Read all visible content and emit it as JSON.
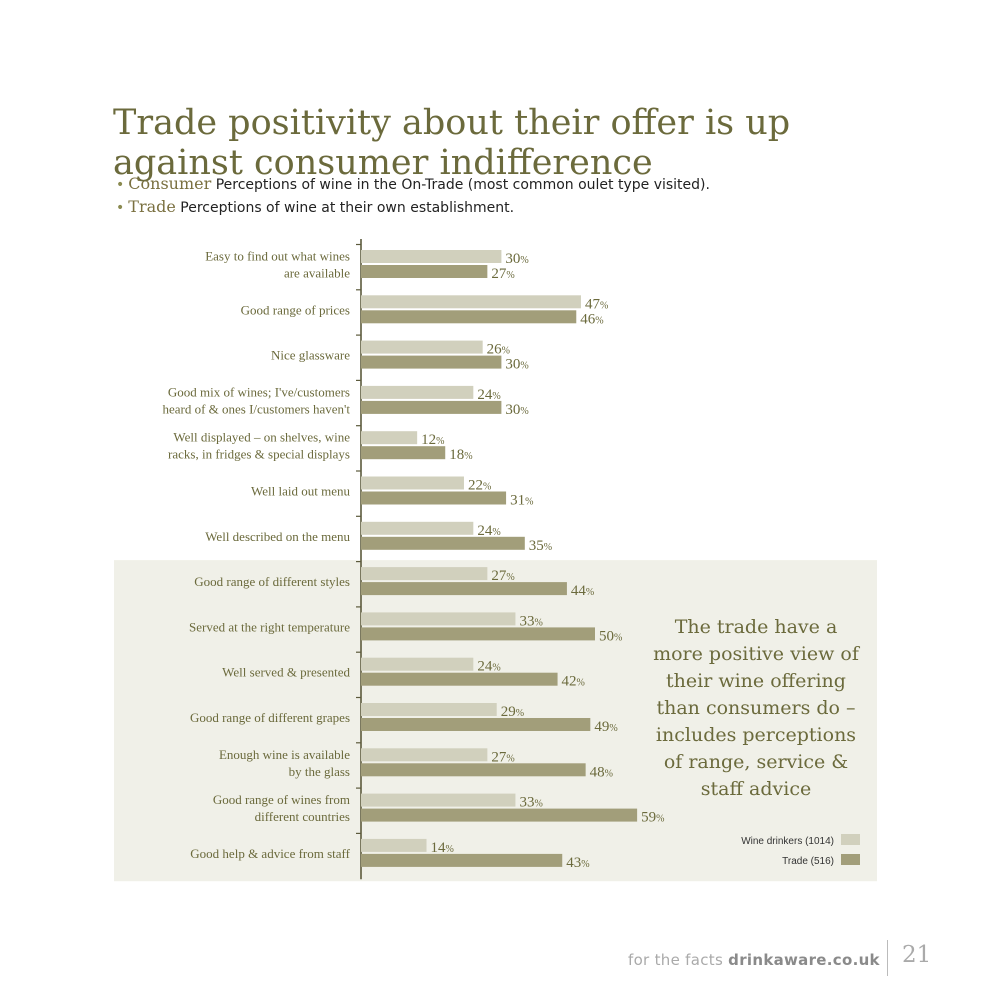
{
  "title": "Trade positivity about their offer is up against consumer indifference",
  "legend_notes": [
    {
      "key": "Consumer",
      "text": "Perceptions of wine in the On-Trade (most common oulet type visited)."
    },
    {
      "key": "Trade",
      "text": "Perceptions of wine at their own establishment."
    }
  ],
  "note": "The trade have a more positive view of their wine offering than consumers do – includes perceptions of range, service & staff advice",
  "footer": {
    "prefix": "for the facts ",
    "site": "drinkaware.co.uk",
    "page": "21"
  },
  "colors": {
    "consumer": "#d1d0bd",
    "trade": "#a29e7a",
    "highlight_bg": "#f0f0e8",
    "label": "#6b6a3c",
    "axis": "#5c5a3c"
  },
  "chart_data": {
    "type": "bar",
    "orientation": "horizontal",
    "categories": [
      [
        "Easy to find out what wines",
        "are available"
      ],
      [
        "Good range of prices"
      ],
      [
        "Nice glassware"
      ],
      [
        "Good mix of wines; I've/customers",
        "heard of & ones I/customers haven't"
      ],
      [
        "Well displayed – on shelves, wine",
        "racks, in fridges & special displays"
      ],
      [
        "Well laid out menu"
      ],
      [
        "Well described on the menu"
      ],
      [
        "Good range of different styles"
      ],
      [
        "Served at the right temperature"
      ],
      [
        "Well served & presented"
      ],
      [
        "Good range of different grapes"
      ],
      [
        "Enough wine is available",
        "by the glass"
      ],
      [
        "Good range of wines from",
        "different countries"
      ],
      [
        "Good help & advice from staff"
      ]
    ],
    "series": [
      {
        "name": "Wine drinkers (1014)",
        "values": [
          30,
          47,
          26,
          24,
          12,
          22,
          24,
          27,
          33,
          24,
          29,
          27,
          33,
          14
        ]
      },
      {
        "name": "Trade (516)",
        "values": [
          27,
          46,
          30,
          30,
          18,
          31,
          35,
          44,
          50,
          42,
          49,
          48,
          59,
          43
        ]
      }
    ],
    "value_suffix": "%",
    "highlighted_from_index": 7,
    "xlim": [
      0,
      100
    ],
    "legend_position": "bottom-right"
  }
}
